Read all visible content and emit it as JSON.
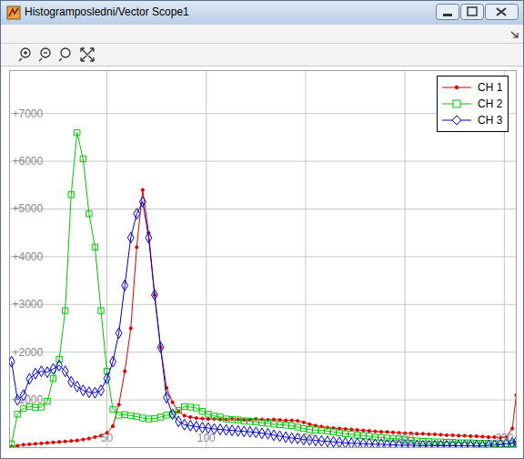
{
  "chart_data": {
    "type": "line",
    "title": "Histogramposledni/Vector Scope1",
    "x": [
      2,
      5,
      8,
      11,
      14,
      17,
      20,
      23,
      26,
      29,
      32,
      35,
      38,
      41,
      44,
      47,
      50,
      53,
      56,
      59,
      62,
      65,
      68,
      71,
      74,
      77,
      80,
      83,
      86,
      89,
      92,
      95,
      98,
      101,
      104,
      107,
      110,
      113,
      116,
      119,
      122,
      125,
      128,
      131,
      134,
      137,
      140,
      143,
      146,
      149,
      152,
      155,
      158,
      161,
      164,
      167,
      170,
      173,
      176,
      179,
      182,
      185,
      188,
      191,
      194,
      197,
      200,
      203,
      206,
      209,
      212,
      215,
      218,
      221,
      224,
      227,
      230,
      233,
      236,
      239,
      242,
      245,
      248,
      251,
      254,
      256
    ],
    "series": [
      {
        "name": "CH 1",
        "color": "#e00000",
        "marker": "dot",
        "values": [
          20,
          40,
          60,
          70,
          80,
          90,
          100,
          110,
          120,
          130,
          140,
          150,
          170,
          190,
          220,
          250,
          310,
          450,
          900,
          1600,
          2500,
          4200,
          5400,
          4500,
          3200,
          2100,
          1250,
          950,
          760,
          670,
          640,
          620,
          610,
          600,
          600,
          590,
          590,
          600,
          590,
          580,
          590,
          600,
          590,
          580,
          590,
          580,
          570,
          570,
          560,
          530,
          490,
          460,
          440,
          420,
          410,
          400,
          390,
          380,
          370,
          360,
          350,
          340,
          330,
          330,
          320,
          310,
          300,
          300,
          290,
          290,
          280,
          280,
          270,
          260,
          260,
          250,
          250,
          240,
          240,
          230,
          220,
          220,
          210,
          220,
          400,
          1100
        ]
      },
      {
        "name": "CH 2",
        "color": "#00c800",
        "marker": "square",
        "values": [
          80,
          700,
          820,
          860,
          840,
          850,
          970,
          1450,
          1850,
          2870,
          5300,
          6600,
          6050,
          4900,
          4200,
          2870,
          1600,
          800,
          680,
          690,
          670,
          650,
          620,
          600,
          610,
          640,
          680,
          700,
          780,
          860,
          850,
          830,
          760,
          700,
          660,
          640,
          600,
          590,
          580,
          560,
          550,
          540,
          520,
          510,
          490,
          480,
          470,
          460,
          430,
          400,
          380,
          370,
          360,
          350,
          330,
          310,
          290,
          280,
          260,
          250,
          240,
          220,
          210,
          200,
          190,
          180,
          160,
          150,
          140,
          130,
          130,
          120,
          120,
          110,
          110,
          100,
          100,
          100,
          90,
          90,
          90,
          80,
          80,
          80,
          80,
          80
        ]
      },
      {
        "name": "CH 3",
        "color": "#0000c8",
        "marker": "diamond",
        "values": [
          1800,
          1000,
          1100,
          1440,
          1550,
          1600,
          1580,
          1650,
          1720,
          1600,
          1380,
          1280,
          1200,
          1160,
          1150,
          1200,
          1450,
          1800,
          2400,
          3400,
          4400,
          4900,
          5150,
          4400,
          3200,
          2100,
          1050,
          700,
          550,
          480,
          460,
          440,
          420,
          410,
          390,
          380,
          370,
          360,
          350,
          340,
          330,
          320,
          300,
          290,
          260,
          240,
          220,
          200,
          190,
          170,
          160,
          150,
          140,
          130,
          120,
          110,
          100,
          90,
          90,
          80,
          80,
          70,
          70,
          60,
          60,
          50,
          50,
          50,
          40,
          40,
          40,
          40,
          40,
          40,
          40,
          40,
          40,
          40,
          40,
          40,
          50,
          50,
          60,
          80,
          100,
          120
        ]
      }
    ],
    "xlim": [
      1,
      256
    ],
    "xticks": [
      50,
      100,
      150,
      200,
      250
    ],
    "ylim": [
      0,
      7900
    ],
    "yticks": [
      {
        "value": 1000,
        "label": "+1000"
      },
      {
        "value": 2000,
        "label": "+2000"
      },
      {
        "value": 3000,
        "label": "+3000"
      },
      {
        "value": 4000,
        "label": "+4000"
      },
      {
        "value": 5000,
        "label": "+5000"
      },
      {
        "value": 6000,
        "label": "+6000"
      },
      {
        "value": 7000,
        "label": "+7000"
      }
    ],
    "grid": true,
    "legend": "top-right"
  }
}
